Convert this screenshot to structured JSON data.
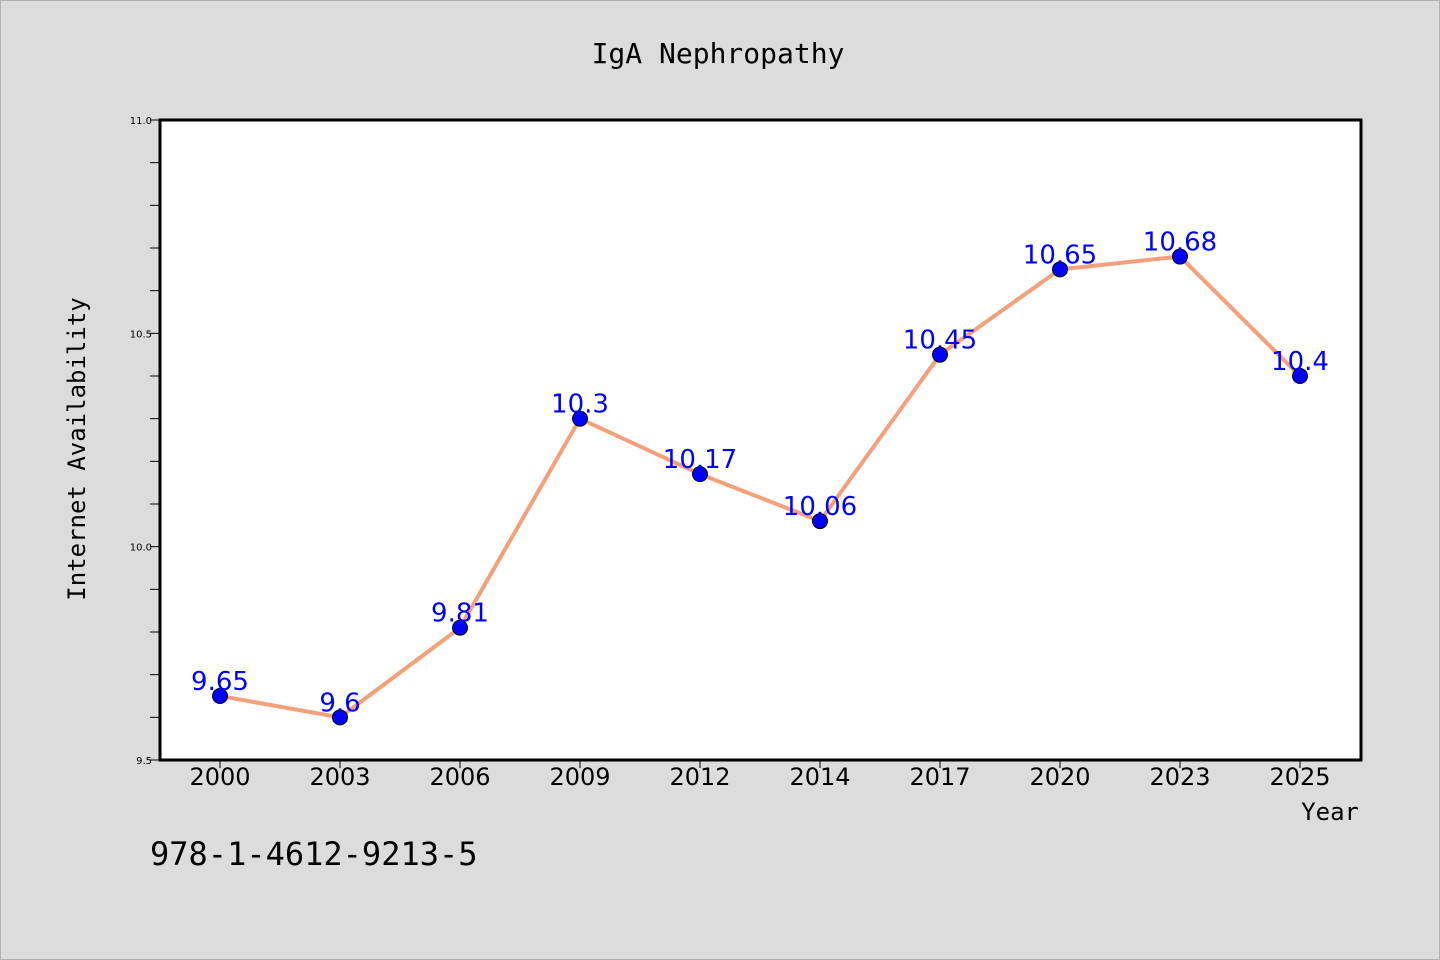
{
  "chart_data": {
    "type": "line",
    "title": "IgA Nephropathy",
    "xlabel": "Year",
    "ylabel": "Internet Availability",
    "categories": [
      "2000",
      "2003",
      "2006",
      "2009",
      "2012",
      "2014",
      "2017",
      "2020",
      "2023",
      "2025"
    ],
    "series": [
      {
        "values": [
          9.65,
          9.6,
          9.81,
          10.3,
          10.17,
          10.06,
          10.45,
          10.65,
          10.68,
          10.4
        ],
        "data_labels": [
          "9.65",
          "9.6",
          "9.81",
          "10.3",
          "10.17",
          "10.06",
          "10.45",
          "10.65",
          "10.68",
          "10.4"
        ]
      }
    ],
    "ylim": [
      9.5,
      11.0
    ],
    "y_major_ticks": [
      "9.5",
      "10.0",
      "10.5",
      "11.0"
    ],
    "y_minor_step": 0.1,
    "grid": false,
    "legend": "none"
  },
  "footer": {
    "text": "978-1-4612-9213-5"
  },
  "colors": {
    "background": "#dcdcdc",
    "plot_background": "#ffffff",
    "line": "#f4a07a",
    "marker": "#0000ff",
    "data_label": "#0000ff"
  }
}
